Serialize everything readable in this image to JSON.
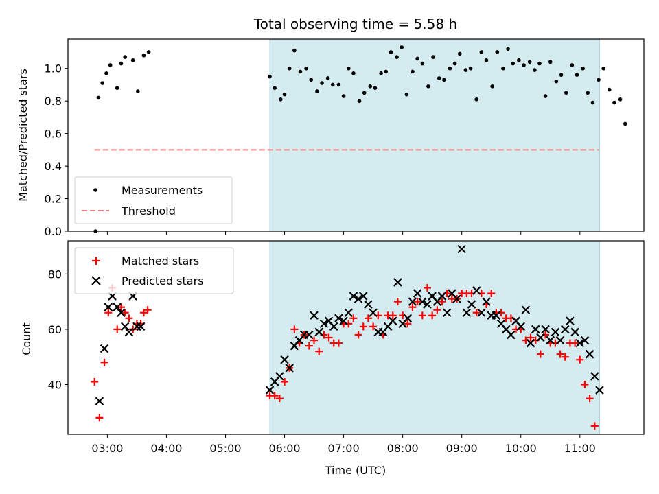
{
  "chart_data": [
    {
      "type": "scatter",
      "title": "Total observing time = 5.58 h",
      "ylabel": "Matched/Predicted stars",
      "xlabel": "",
      "xlim": [
        "02:20",
        "12:05"
      ],
      "ylim": [
        0,
        1.18
      ],
      "yticks": [
        "0.0",
        "0.2",
        "0.4",
        "0.6",
        "0.8",
        "1.0"
      ],
      "shaded_region": {
        "from": "05:45",
        "to": "11:20",
        "color": "#d4ebf0"
      },
      "legend": {
        "position": "lower-left",
        "entries": [
          "Measurements",
          "Threshold"
        ]
      },
      "threshold": {
        "name": "Threshold",
        "value": 0.5,
        "x_from": "02:47",
        "x_to": "11:19",
        "color": "#f08080"
      },
      "series": [
        {
          "name": "Measurements",
          "color": "#000000",
          "points": [
            [
              "02:48",
              0.0
            ],
            [
              "02:51",
              0.82
            ],
            [
              "02:55",
              0.91
            ],
            [
              "02:59",
              0.97
            ],
            [
              "03:03",
              1.02
            ],
            [
              "03:10",
              0.88
            ],
            [
              "03:14",
              1.03
            ],
            [
              "03:18",
              1.07
            ],
            [
              "03:26",
              1.05
            ],
            [
              "03:31",
              0.86
            ],
            [
              "03:37",
              1.08
            ],
            [
              "03:42",
              1.1
            ],
            [
              "05:45",
              0.95
            ],
            [
              "05:50",
              0.88
            ],
            [
              "05:56",
              0.81
            ],
            [
              "06:00",
              0.84
            ],
            [
              "06:05",
              1.0
            ],
            [
              "06:10",
              1.11
            ],
            [
              "06:16",
              0.98
            ],
            [
              "06:22",
              1.0
            ],
            [
              "06:27",
              0.93
            ],
            [
              "06:33",
              0.86
            ],
            [
              "06:38",
              0.91
            ],
            [
              "06:44",
              0.94
            ],
            [
              "06:49",
              0.9
            ],
            [
              "06:55",
              0.9
            ],
            [
              "07:00",
              0.83
            ],
            [
              "07:05",
              1.0
            ],
            [
              "07:10",
              0.97
            ],
            [
              "07:16",
              0.8
            ],
            [
              "07:21",
              0.85
            ],
            [
              "07:27",
              0.89
            ],
            [
              "07:32",
              0.88
            ],
            [
              "07:38",
              0.97
            ],
            [
              "07:43",
              0.98
            ],
            [
              "07:48",
              1.1
            ],
            [
              "07:54",
              1.07
            ],
            [
              "07:59",
              1.13
            ],
            [
              "08:04",
              0.84
            ],
            [
              "08:10",
              0.98
            ],
            [
              "08:15",
              1.06
            ],
            [
              "08:20",
              1.03
            ],
            [
              "08:26",
              0.89
            ],
            [
              "08:31",
              1.07
            ],
            [
              "08:37",
              0.94
            ],
            [
              "08:42",
              0.93
            ],
            [
              "08:48",
              1.0
            ],
            [
              "08:53",
              1.03
            ],
            [
              "08:58",
              1.09
            ],
            [
              "09:04",
              0.99
            ],
            [
              "09:09",
              1.0
            ],
            [
              "09:15",
              0.81
            ],
            [
              "09:20",
              1.1
            ],
            [
              "09:25",
              1.05
            ],
            [
              "09:31",
              0.89
            ],
            [
              "09:36",
              1.1
            ],
            [
              "09:42",
              1.0
            ],
            [
              "09:47",
              1.12
            ],
            [
              "09:52",
              1.03
            ],
            [
              "09:58",
              1.05
            ],
            [
              "10:03",
              1.02
            ],
            [
              "10:09",
              1.04
            ],
            [
              "10:14",
              0.99
            ],
            [
              "10:19",
              1.03
            ],
            [
              "10:25",
              0.83
            ],
            [
              "10:30",
              1.04
            ],
            [
              "10:36",
              0.92
            ],
            [
              "10:41",
              0.96
            ],
            [
              "10:46",
              0.85
            ],
            [
              "10:52",
              1.02
            ],
            [
              "10:57",
              0.96
            ],
            [
              "11:03",
              1.0
            ],
            [
              "11:08",
              0.85
            ],
            [
              "11:13",
              0.79
            ],
            [
              "11:19",
              0.93
            ],
            [
              "11:24",
              1.0
            ],
            [
              "11:30",
              0.87
            ],
            [
              "11:35",
              0.79
            ],
            [
              "11:41",
              0.81
            ],
            [
              "11:46",
              0.66
            ]
          ]
        }
      ]
    },
    {
      "type": "scatter",
      "title": "",
      "ylabel": "Count",
      "xlabel": "Time (UTC)",
      "xlim": [
        "02:20",
        "12:05"
      ],
      "ylim": [
        22,
        92
      ],
      "yticks": [
        "40",
        "60",
        "80"
      ],
      "xticks": [
        "03:00",
        "04:00",
        "05:00",
        "06:00",
        "07:00",
        "08:00",
        "09:00",
        "10:00",
        "11:00"
      ],
      "shaded_region": {
        "from": "05:45",
        "to": "11:20",
        "color": "#d4ebf0"
      },
      "legend": {
        "position": "top-left",
        "entries": [
          "Matched stars",
          "Predicted stars"
        ]
      },
      "series": [
        {
          "name": "Matched stars",
          "marker": "plus",
          "color": "#ff0000",
          "points": [
            [
              "02:47",
              41
            ],
            [
              "02:52",
              28
            ],
            [
              "02:57",
              48
            ],
            [
              "03:01",
              66
            ],
            [
              "03:05",
              75
            ],
            [
              "03:10",
              60
            ],
            [
              "03:14",
              68
            ],
            [
              "03:18",
              66
            ],
            [
              "03:22",
              64
            ],
            [
              "03:26",
              60
            ],
            [
              "03:30",
              62
            ],
            [
              "03:34",
              62
            ],
            [
              "03:37",
              66
            ],
            [
              "03:41",
              67
            ],
            [
              "05:45",
              36
            ],
            [
              "05:50",
              36
            ],
            [
              "05:55",
              35
            ],
            [
              "06:00",
              41
            ],
            [
              "06:05",
              46
            ],
            [
              "06:10",
              60
            ],
            [
              "06:15",
              55
            ],
            [
              "06:20",
              58
            ],
            [
              "06:25",
              54
            ],
            [
              "06:30",
              56
            ],
            [
              "06:35",
              52
            ],
            [
              "06:40",
              58
            ],
            [
              "06:45",
              57
            ],
            [
              "06:50",
              55
            ],
            [
              "06:55",
              55
            ],
            [
              "07:00",
              62
            ],
            [
              "07:05",
              62
            ],
            [
              "07:10",
              64
            ],
            [
              "07:15",
              58
            ],
            [
              "07:20",
              61
            ],
            [
              "07:25",
              64
            ],
            [
              "07:30",
              61
            ],
            [
              "07:35",
              65
            ],
            [
              "07:40",
              58
            ],
            [
              "07:45",
              65
            ],
            [
              "07:50",
              65
            ],
            [
              "07:55",
              70
            ],
            [
              "08:00",
              65
            ],
            [
              "08:05",
              62
            ],
            [
              "08:10",
              68
            ],
            [
              "08:15",
              70
            ],
            [
              "08:20",
              65
            ],
            [
              "08:25",
              75
            ],
            [
              "08:30",
              65
            ],
            [
              "08:35",
              67
            ],
            [
              "08:40",
              70
            ],
            [
              "08:45",
              73
            ],
            [
              "08:50",
              71
            ],
            [
              "08:55",
              71
            ],
            [
              "09:00",
              73
            ],
            [
              "09:05",
              73
            ],
            [
              "09:10",
              73
            ],
            [
              "09:15",
              66
            ],
            [
              "09:20",
              73
            ],
            [
              "09:25",
              69
            ],
            [
              "09:30",
              73
            ],
            [
              "09:35",
              66
            ],
            [
              "09:40",
              66
            ],
            [
              "09:45",
              64
            ],
            [
              "09:50",
              64
            ],
            [
              "09:55",
              60
            ],
            [
              "10:00",
              60
            ],
            [
              "10:05",
              56
            ],
            [
              "10:10",
              57
            ],
            [
              "10:15",
              56
            ],
            [
              "10:20",
              51
            ],
            [
              "10:25",
              58
            ],
            [
              "10:30",
              55
            ],
            [
              "10:35",
              55
            ],
            [
              "10:40",
              51
            ],
            [
              "10:45",
              50
            ],
            [
              "10:50",
              55
            ],
            [
              "10:55",
              55
            ],
            [
              "11:00",
              49
            ],
            [
              "11:05",
              40
            ],
            [
              "11:10",
              35
            ],
            [
              "11:15",
              25
            ]
          ]
        },
        {
          "name": "Predicted stars",
          "marker": "x",
          "color": "#000000",
          "points": [
            [
              "02:52",
              34
            ],
            [
              "02:57",
              53
            ],
            [
              "03:01",
              68
            ],
            [
              "03:05",
              72
            ],
            [
              "03:10",
              68
            ],
            [
              "03:14",
              66
            ],
            [
              "03:18",
              61
            ],
            [
              "03:22",
              59
            ],
            [
              "03:26",
              72
            ],
            [
              "03:30",
              61
            ],
            [
              "03:34",
              61
            ],
            [
              "05:45",
              38
            ],
            [
              "05:50",
              41
            ],
            [
              "05:55",
              43
            ],
            [
              "06:00",
              49
            ],
            [
              "06:05",
              46
            ],
            [
              "06:10",
              54
            ],
            [
              "06:15",
              56
            ],
            [
              "06:20",
              58
            ],
            [
              "06:25",
              58
            ],
            [
              "06:30",
              65
            ],
            [
              "06:35",
              59
            ],
            [
              "06:40",
              62
            ],
            [
              "06:45",
              63
            ],
            [
              "06:50",
              61
            ],
            [
              "06:55",
              64
            ],
            [
              "07:00",
              63
            ],
            [
              "07:05",
              66
            ],
            [
              "07:10",
              72
            ],
            [
              "07:15",
              71
            ],
            [
              "07:20",
              72
            ],
            [
              "07:25",
              69
            ],
            [
              "07:30",
              66
            ],
            [
              "07:35",
              59
            ],
            [
              "07:40",
              59
            ],
            [
              "07:45",
              61
            ],
            [
              "07:50",
              63
            ],
            [
              "07:55",
              77
            ],
            [
              "08:00",
              62
            ],
            [
              "08:05",
              64
            ],
            [
              "08:10",
              70
            ],
            [
              "08:15",
              73
            ],
            [
              "08:20",
              70
            ],
            [
              "08:25",
              69
            ],
            [
              "08:30",
              72
            ],
            [
              "08:35",
              70
            ],
            [
              "08:40",
              72
            ],
            [
              "08:45",
              66
            ],
            [
              "08:50",
              73
            ],
            [
              "08:55",
              71
            ],
            [
              "09:00",
              89
            ],
            [
              "09:05",
              66
            ],
            [
              "09:10",
              69
            ],
            [
              "09:15",
              74
            ],
            [
              "09:20",
              66
            ],
            [
              "09:25",
              70
            ],
            [
              "09:30",
              65
            ],
            [
              "09:35",
              65
            ],
            [
              "09:40",
              62
            ],
            [
              "09:45",
              60
            ],
            [
              "09:50",
              58
            ],
            [
              "09:55",
              63
            ],
            [
              "10:00",
              61
            ],
            [
              "10:05",
              67
            ],
            [
              "10:10",
              55
            ],
            [
              "10:15",
              60
            ],
            [
              "10:20",
              57
            ],
            [
              "10:25",
              60
            ],
            [
              "10:30",
              56
            ],
            [
              "10:35",
              59
            ],
            [
              "10:40",
              56
            ],
            [
              "10:45",
              60
            ],
            [
              "10:50",
              63
            ],
            [
              "10:55",
              59
            ],
            [
              "11:00",
              55
            ],
            [
              "11:05",
              56
            ],
            [
              "11:10",
              51
            ],
            [
              "11:15",
              43
            ],
            [
              "11:20",
              38
            ]
          ]
        }
      ]
    }
  ]
}
